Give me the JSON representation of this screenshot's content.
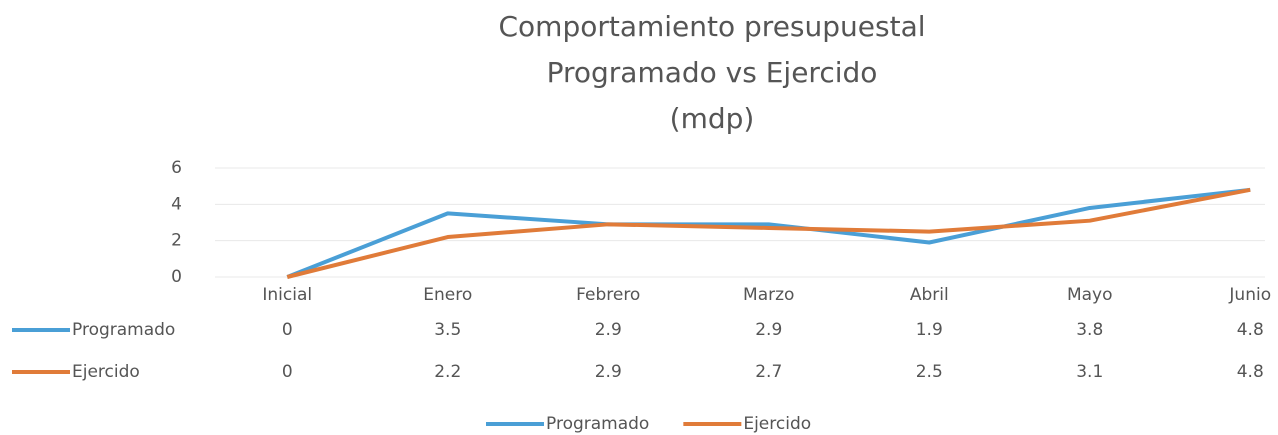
{
  "chart_data": {
    "type": "line",
    "title": [
      "Comportamiento presupuestal",
      "Programado vs Ejercido",
      "(mdp)"
    ],
    "categories": [
      "Inicial",
      "Enero",
      "Febrero",
      "Marzo",
      "Abril",
      "Mayo",
      "Junio"
    ],
    "series": [
      {
        "name": "Programado",
        "color": "#4a9fd6",
        "values": [
          0,
          3.5,
          2.9,
          2.9,
          1.9,
          3.8,
          4.8
        ]
      },
      {
        "name": "Ejercido",
        "color": "#e07b39",
        "values": [
          0,
          2.2,
          2.9,
          2.7,
          2.5,
          3.1,
          4.8
        ]
      }
    ],
    "ylim": [
      0,
      6
    ],
    "yticks": [
      0,
      2,
      4,
      6
    ],
    "grid": true,
    "data_table": true,
    "legend": "bottom"
  }
}
